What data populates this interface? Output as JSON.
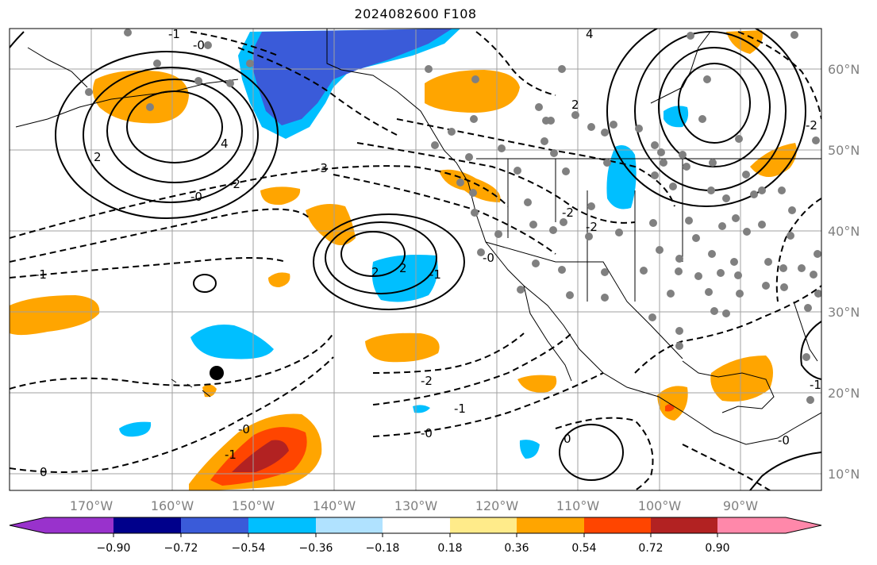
{
  "title": "2024082600 F108",
  "lon_labels": [
    "170°W",
    "160°W",
    "150°W",
    "140°W",
    "130°W",
    "120°W",
    "110°W",
    "100°W",
    "90°W"
  ],
  "lat_labels": [
    "60°N",
    "50°N",
    "40°N",
    "30°N",
    "20°N",
    "10°N"
  ],
  "colorbar": {
    "tick_labels": [
      "−0.90",
      "−0.72",
      "−0.54",
      "−0.36",
      "−0.18",
      "0.18",
      "0.36",
      "0.54",
      "0.72",
      "0.90"
    ],
    "colors": [
      "#9932cc",
      "#00008b",
      "#3a5bd9",
      "#00bfff",
      "#b0e2ff",
      "#ffffff",
      "#ffeb8a",
      "#ffa500",
      "#ff4500",
      "#b22222",
      "#ff88aa"
    ]
  },
  "contour_labels": [
    {
      "text": "-1",
      "pos": "ne"
    },
    {
      "text": "-0",
      "pos": "ne"
    },
    {
      "text": "4",
      "pos": "n"
    },
    {
      "text": "-3",
      "pos": "c"
    },
    {
      "text": "-2",
      "pos": "c"
    },
    {
      "text": "-1",
      "pos": "w"
    },
    {
      "text": "2",
      "pos": "c"
    },
    {
      "text": "2",
      "pos": "c"
    },
    {
      "text": "-1",
      "pos": "c"
    },
    {
      "text": "-0",
      "pos": "c"
    },
    {
      "text": "-2",
      "pos": "s"
    },
    {
      "text": "-1",
      "pos": "s"
    },
    {
      "text": "-0",
      "pos": "s"
    },
    {
      "text": "0",
      "pos": "s"
    },
    {
      "text": "-0",
      "pos": "sw"
    },
    {
      "text": "-1",
      "pos": "sw"
    },
    {
      "text": "0",
      "pos": "sw"
    },
    {
      "text": "2",
      "pos": "w"
    },
    {
      "text": "4",
      "pos": "w"
    },
    {
      "text": "-2",
      "pos": "c"
    },
    {
      "text": "-0",
      "pos": "c"
    },
    {
      "text": "-2",
      "pos": "e"
    },
    {
      "text": "-1",
      "pos": "e"
    },
    {
      "text": "-0",
      "pos": "e"
    },
    {
      "text": "2",
      "pos": "ne"
    },
    {
      "text": "-2",
      "pos": "nw"
    }
  ],
  "markers": {
    "station_color": "#808080",
    "highlight_color": "#000000"
  }
}
